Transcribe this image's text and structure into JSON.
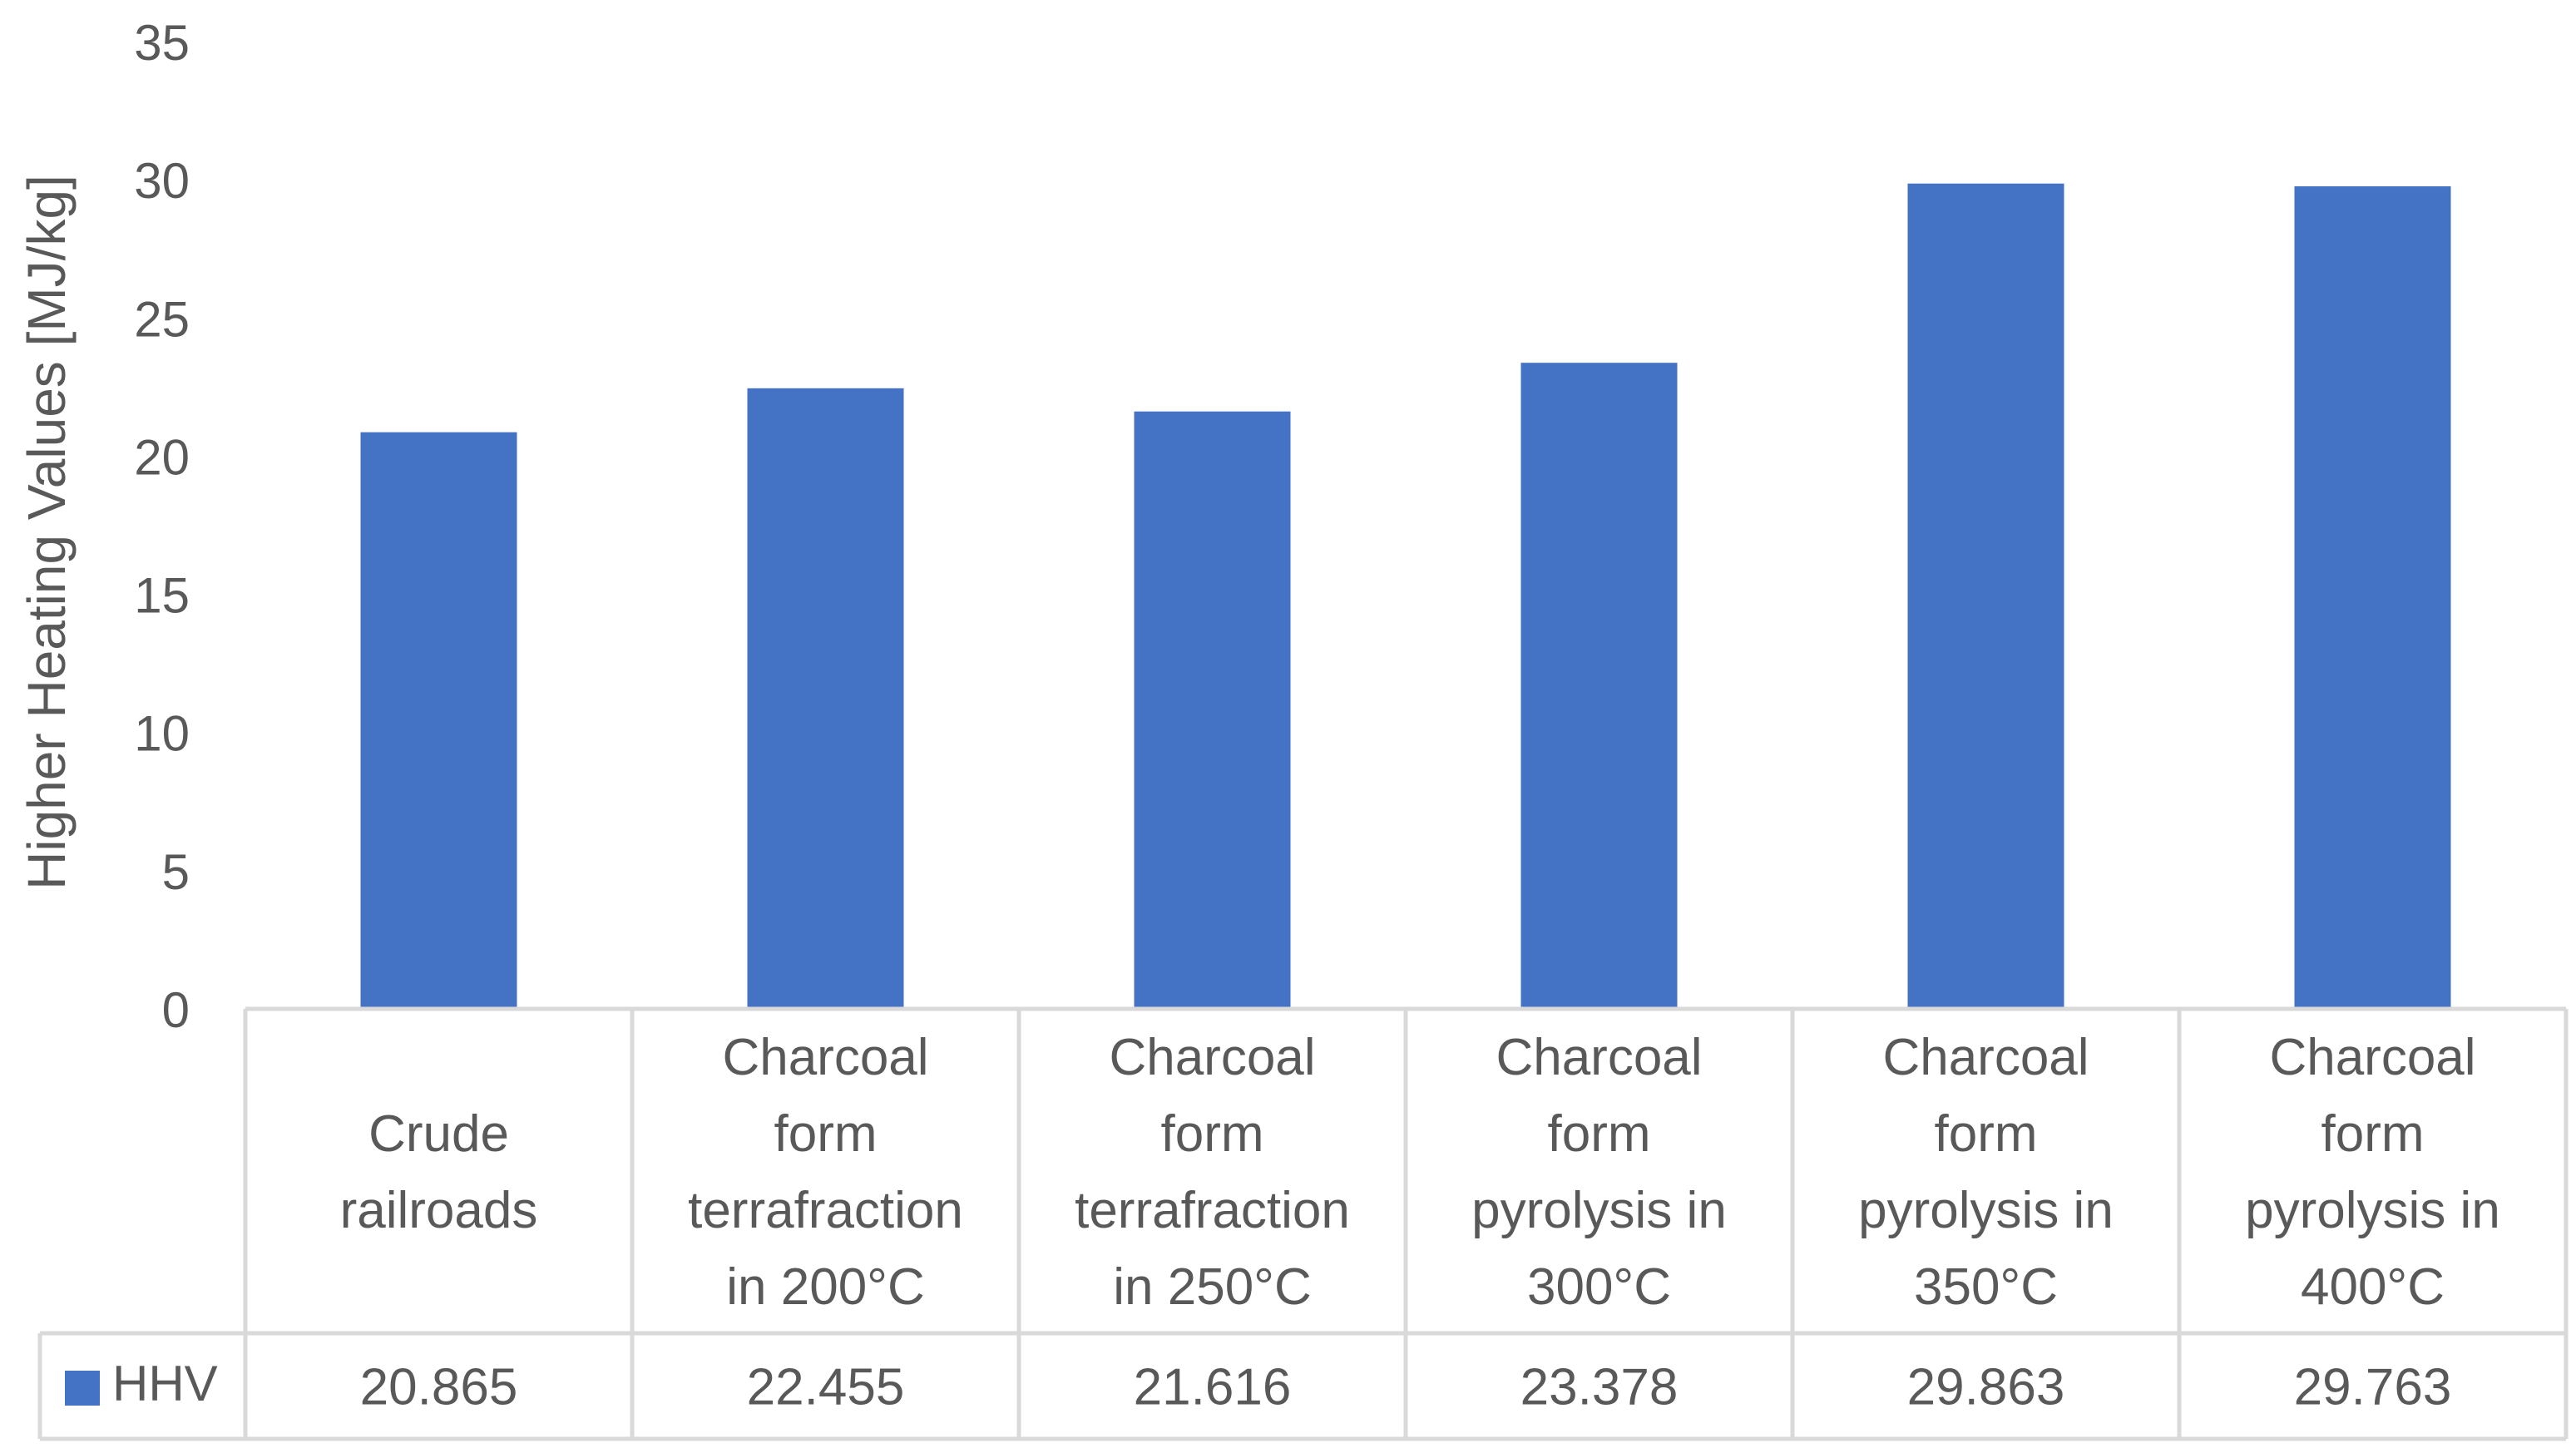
{
  "chart_data": {
    "type": "bar",
    "title": "",
    "ylabel": "Higher Heating Values [MJ/kg]",
    "xlabel": "",
    "ylim": [
      0,
      35
    ],
    "yticks": [
      "0",
      "5",
      "10",
      "15",
      "20",
      "25",
      "30",
      "35"
    ],
    "grid": false,
    "legend_position": "data-table-left",
    "categories": [
      [
        "Crude",
        "railroads"
      ],
      [
        "Charcoal",
        "form",
        "terrafraction",
        "in 200°C"
      ],
      [
        "Charcoal",
        "form",
        "terrafraction",
        "in 250°C"
      ],
      [
        "Charcoal",
        "form",
        "pyrolysis in",
        "300°C"
      ],
      [
        "Charcoal",
        "form",
        "pyrolysis in",
        "350°C"
      ],
      [
        "Charcoal",
        "form",
        "pyrolysis in",
        "400°C"
      ]
    ],
    "series": [
      {
        "name": "HHV",
        "color": "#4472C4",
        "values": [
          20.865,
          22.455,
          21.616,
          23.378,
          29.863,
          29.763
        ],
        "labels": [
          "20.865",
          "22.455",
          "21.616",
          "23.378",
          "29.863",
          "29.763"
        ]
      }
    ]
  }
}
